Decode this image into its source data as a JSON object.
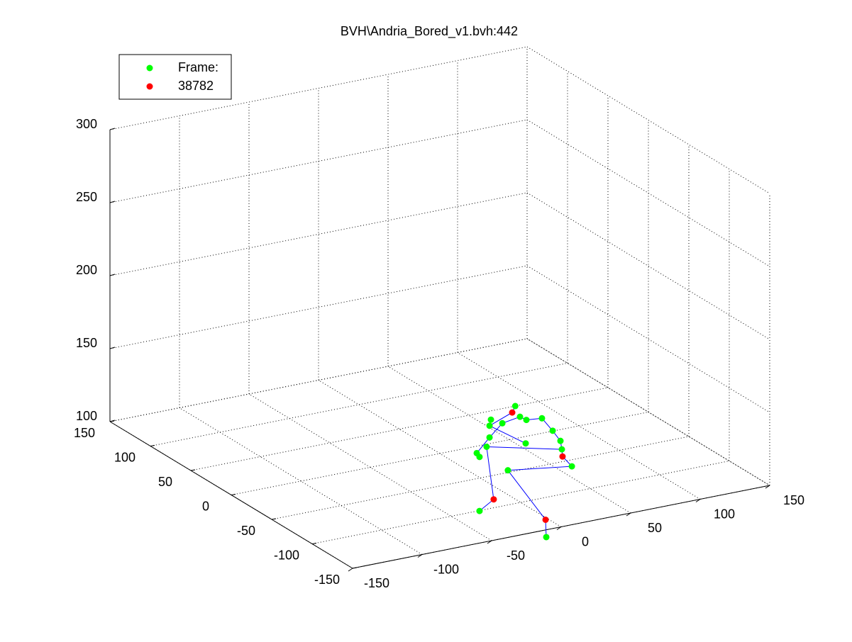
{
  "chart_data": {
    "type": "scatter3d",
    "title": "BVH\\Andria_Bored_v1.bvh:442",
    "xlim": [
      -150,
      150
    ],
    "xticks": [
      -150,
      -100,
      -50,
      0,
      50,
      100,
      150
    ],
    "ylim": [
      -150,
      150
    ],
    "yticks": [
      -150,
      -100,
      -50,
      0,
      50,
      100,
      150
    ],
    "zlim": [
      100,
      300
    ],
    "zticks": [
      100,
      150,
      200,
      250,
      300
    ],
    "grid": true,
    "legend": "upper-left",
    "series": [
      {
        "name": "Frame:",
        "color": "#00ff00",
        "mode": "markers",
        "x": [
          -33,
          -50.5,
          -51.5,
          -42.3,
          -29.6,
          -25,
          -13.8,
          -6.1,
          -25.5,
          -51.5,
          -53.6,
          -60.7,
          -58.7,
          -0.5,
          0.5,
          7.7,
          -38.3,
          -58.7,
          -10.7
        ],
        "y": [
          -150,
          -150,
          -150,
          -150,
          -150,
          -150,
          -150,
          -150,
          -150,
          -150,
          -150,
          -150,
          -150,
          -150,
          -150,
          -150,
          -150,
          -150,
          -150
        ],
        "z": [
          189,
          183,
          179,
          179,
          181,
          178,
          177,
          167,
          162,
          171,
          165,
          162,
          159,
          159,
          153,
          140,
          146,
          122,
          95
        ]
      },
      {
        "name": "38782",
        "color": "#ff0000",
        "mode": "markers",
        "x": [
          -35.2,
          1,
          -48.5,
          -11.2
        ],
        "y": [
          -150,
          -150,
          -150,
          -150
        ],
        "z": [
          185,
          148,
          128,
          107
        ]
      },
      {
        "color": "#0000ff",
        "mode": "lines",
        "x": [
          -53.6,
          -48.5,
          -58.7,
          null,
          -38.3,
          -11.2,
          -10.7,
          null,
          -38.3,
          7.7,
          1,
          0.5,
          -0.5,
          -6.1,
          -13.8,
          -25,
          -29.6,
          null,
          -53.6,
          0.5,
          null,
          -25.5,
          -51.5,
          -35.2,
          -33,
          null,
          -60.7,
          -51.5,
          -42.3,
          -29.6
        ],
        "y": [
          -150,
          -150,
          -150,
          null,
          -150,
          -150,
          -150,
          null,
          -150,
          -150,
          -150,
          -150,
          -150,
          -150,
          -150,
          -150,
          -150,
          null,
          -150,
          -150,
          null,
          -150,
          -150,
          -150,
          -150,
          null,
          -150,
          -150,
          -150,
          -150
        ],
        "z": [
          165,
          128,
          122,
          null,
          146,
          107,
          95,
          null,
          146,
          140,
          148,
          153,
          159,
          167,
          177,
          178,
          181,
          null,
          165,
          153,
          null,
          162,
          179,
          185,
          189,
          null,
          162,
          171,
          179,
          181
        ]
      }
    ]
  }
}
